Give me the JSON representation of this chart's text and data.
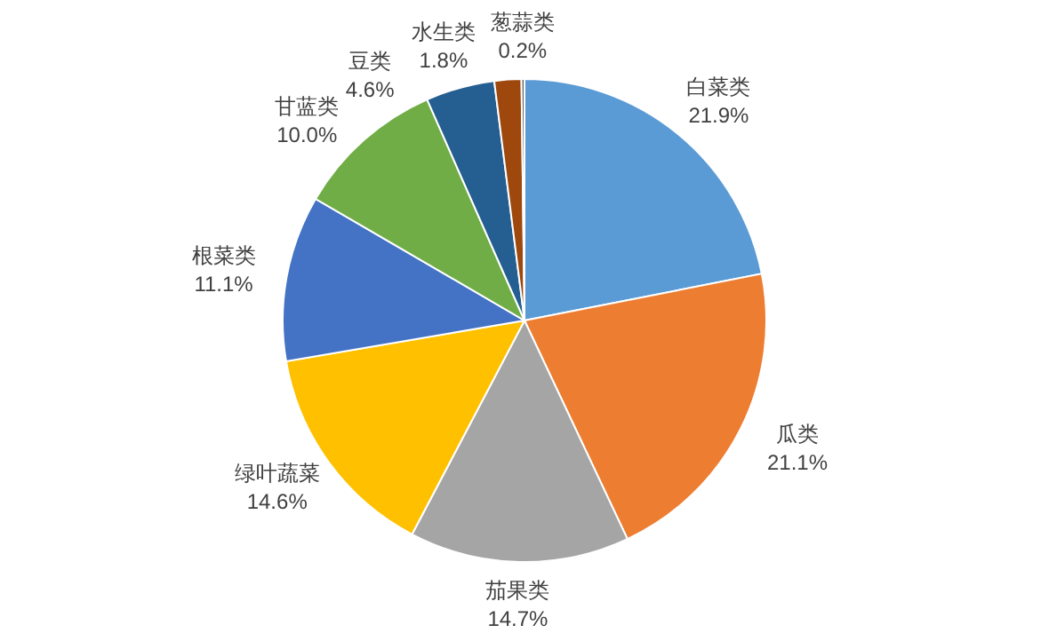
{
  "chart_data": {
    "type": "pie",
    "categories": [
      "白菜类",
      "瓜类",
      "茄果类",
      "绿叶蔬菜",
      "根菜类",
      "甘蓝类",
      "豆类",
      "水生类",
      "葱蒜类"
    ],
    "values": [
      21.9,
      21.1,
      14.7,
      14.6,
      11.1,
      10.0,
      4.6,
      1.8,
      0.2
    ],
    "value_labels": [
      "21.9%",
      "21.1%",
      "14.7%",
      "14.6%",
      "11.1%",
      "10.0%",
      "4.6%",
      "1.8%",
      "0.2%"
    ],
    "colors": [
      "#5b9bd5",
      "#ed7d31",
      "#a5a5a5",
      "#ffc000",
      "#4472c4",
      "#70ad47",
      "#255e91",
      "#9e480e",
      "#636363"
    ]
  }
}
